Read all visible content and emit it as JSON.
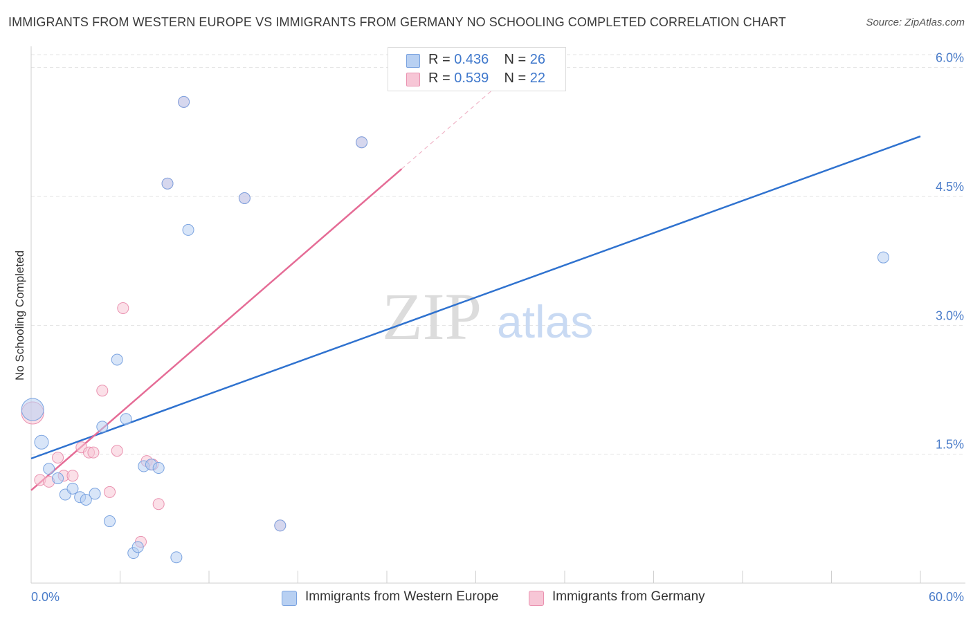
{
  "header": {
    "title": "IMMIGRANTS FROM WESTERN EUROPE VS IMMIGRANTS FROM GERMANY NO SCHOOLING COMPLETED CORRELATION CHART",
    "source": "Source: ZipAtlas.com"
  },
  "watermark": {
    "zip": "ZIP",
    "atlas": "atlas"
  },
  "legend": {
    "series1": {
      "r_label": "R =",
      "r_value": "0.436",
      "n_label": "N =",
      "n_value": "26"
    },
    "series2": {
      "r_label": "R =",
      "r_value": "0.539",
      "n_label": "N =",
      "n_value": "22"
    }
  },
  "bottom_legend": {
    "series1": "Immigrants from Western Europe",
    "series2": "Immigrants from Germany"
  },
  "colors": {
    "blue_fill": "#b8d0f2",
    "blue_stroke": "#7aa3e0",
    "blue_line": "#2f72cf",
    "pink_fill": "#f7c6d6",
    "pink_stroke": "#ea92b0",
    "pink_line": "#e56c96",
    "tick_text": "#4a7cc9"
  },
  "chart_data": {
    "type": "scatter",
    "title": "IMMIGRANTS FROM WESTERN EUROPE VS IMMIGRANTS FROM GERMANY NO SCHOOLING COMPLETED CORRELATION CHART",
    "xlabel": "",
    "ylabel": "No Schooling Completed",
    "xlim": [
      0,
      60
    ],
    "ylim": [
      0,
      6.15
    ],
    "x_tick_labels": [
      "0.0%",
      "60.0%"
    ],
    "y_ticks": [
      1.5,
      3.0,
      4.5,
      6.0
    ],
    "y_tick_labels": [
      "1.5%",
      "3.0%",
      "4.5%",
      "6.0%"
    ],
    "series": [
      {
        "name": "Immigrants from Western Europe",
        "r": 0.436,
        "n": 26,
        "points": [
          {
            "x": 0.1,
            "y": 2.02,
            "size": 16
          },
          {
            "x": 0.7,
            "y": 1.64,
            "size": 10
          },
          {
            "x": 1.2,
            "y": 1.33,
            "size": 8
          },
          {
            "x": 1.8,
            "y": 1.22,
            "size": 8
          },
          {
            "x": 2.3,
            "y": 1.03,
            "size": 8
          },
          {
            "x": 2.8,
            "y": 1.1,
            "size": 8
          },
          {
            "x": 3.3,
            "y": 1.0,
            "size": 8
          },
          {
            "x": 3.7,
            "y": 0.97,
            "size": 8
          },
          {
            "x": 4.3,
            "y": 1.04,
            "size": 8
          },
          {
            "x": 4.8,
            "y": 1.82,
            "size": 8
          },
          {
            "x": 5.3,
            "y": 0.72,
            "size": 8
          },
          {
            "x": 5.8,
            "y": 2.6,
            "size": 8
          },
          {
            "x": 6.4,
            "y": 1.91,
            "size": 8
          },
          {
            "x": 6.9,
            "y": 0.35,
            "size": 8
          },
          {
            "x": 7.2,
            "y": 0.42,
            "size": 8
          },
          {
            "x": 7.6,
            "y": 1.36,
            "size": 8
          },
          {
            "x": 8.1,
            "y": 1.38,
            "size": 8
          },
          {
            "x": 8.6,
            "y": 1.34,
            "size": 8
          },
          {
            "x": 9.2,
            "y": 4.65,
            "size": 8
          },
          {
            "x": 9.8,
            "y": 0.3,
            "size": 8
          },
          {
            "x": 10.6,
            "y": 4.11,
            "size": 8
          },
          {
            "x": 10.3,
            "y": 5.6,
            "size": 8
          },
          {
            "x": 14.4,
            "y": 4.48,
            "size": 8
          },
          {
            "x": 16.8,
            "y": 0.67,
            "size": 8
          },
          {
            "x": 22.3,
            "y": 5.13,
            "size": 8
          },
          {
            "x": 57.5,
            "y": 3.79,
            "size": 8
          }
        ],
        "trend": {
          "x0": 0,
          "y0": 1.45,
          "x1": 60,
          "y1": 5.2
        }
      },
      {
        "name": "Immigrants from Germany",
        "r": 0.539,
        "n": 22,
        "points": [
          {
            "x": 0.1,
            "y": 1.98,
            "size": 16
          },
          {
            "x": 0.6,
            "y": 1.2,
            "size": 8
          },
          {
            "x": 1.2,
            "y": 1.18,
            "size": 8
          },
          {
            "x": 1.8,
            "y": 1.46,
            "size": 8
          },
          {
            "x": 2.2,
            "y": 1.25,
            "size": 8
          },
          {
            "x": 2.8,
            "y": 1.25,
            "size": 8
          },
          {
            "x": 3.4,
            "y": 1.58,
            "size": 8
          },
          {
            "x": 3.9,
            "y": 1.52,
            "size": 8
          },
          {
            "x": 4.2,
            "y": 1.52,
            "size": 8
          },
          {
            "x": 4.8,
            "y": 2.24,
            "size": 8
          },
          {
            "x": 5.3,
            "y": 1.06,
            "size": 8
          },
          {
            "x": 5.8,
            "y": 1.54,
            "size": 8
          },
          {
            "x": 6.2,
            "y": 3.2,
            "size": 8
          },
          {
            "x": 7.4,
            "y": 0.48,
            "size": 8
          },
          {
            "x": 7.8,
            "y": 1.42,
            "size": 8
          },
          {
            "x": 8.2,
            "y": 1.38,
            "size": 8
          },
          {
            "x": 8.6,
            "y": 0.92,
            "size": 8
          },
          {
            "x": 9.2,
            "y": 4.65,
            "size": 8
          },
          {
            "x": 10.3,
            "y": 5.6,
            "size": 8
          },
          {
            "x": 14.4,
            "y": 4.48,
            "size": 8
          },
          {
            "x": 16.8,
            "y": 0.67,
            "size": 8
          },
          {
            "x": 22.3,
            "y": 5.13,
            "size": 8
          }
        ],
        "trend": {
          "x0": 0,
          "y0": 1.08,
          "x1": 25,
          "y1": 4.82
        },
        "trend_dashed_extension": {
          "x0": 25,
          "y0": 4.82,
          "x1": 32,
          "y1": 5.87
        }
      }
    ]
  }
}
